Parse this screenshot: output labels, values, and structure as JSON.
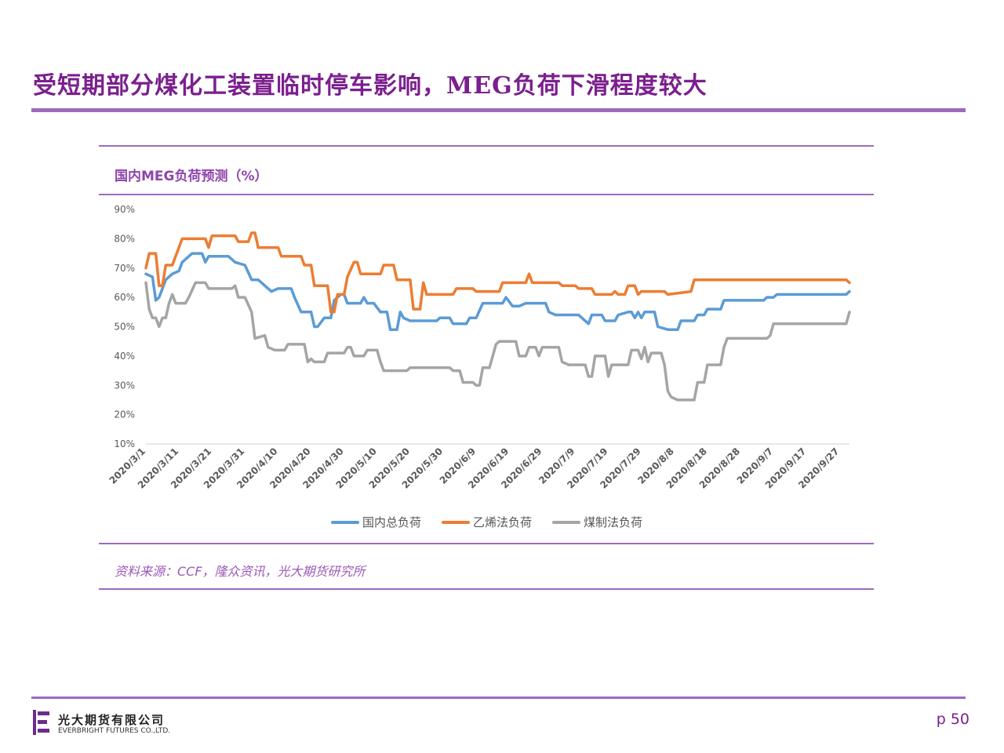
{
  "slide": {
    "title": "受短期部分煤化工装置临时停车影响，MEG负荷下滑程度较大",
    "page_label": "p 50",
    "source": "资料来源：CCF，隆众资讯，光大期货研究所"
  },
  "logo": {
    "name_cn": "光大期货有限公司",
    "name_en": "EVERBRIGHT FUTURES CO.,LTD."
  },
  "colors": {
    "accent": "#7b1f8e",
    "rule": "#9b6bc0",
    "series_total": "#5b9bd5",
    "series_ethylene": "#ed7d31",
    "series_coal": "#a5a5a5"
  },
  "chart_data": {
    "type": "line",
    "title": "国内MEG负荷预测（%）",
    "ylim": [
      10,
      90
    ],
    "y_ticks": [
      "10%",
      "20%",
      "30%",
      "40%",
      "50%",
      "60%",
      "70%",
      "80%",
      "90%"
    ],
    "x_ticks": [
      "2020/3/1",
      "2020/3/11",
      "2020/3/21",
      "2020/3/31",
      "2020/4/10",
      "2020/4/20",
      "2020/4/30",
      "2020/5/10",
      "2020/5/20",
      "2020/5/30",
      "2020/6/9",
      "2020/6/19",
      "2020/6/29",
      "2020/7/9",
      "2020/7/19",
      "2020/7/29",
      "2020/8/8",
      "2020/8/18",
      "2020/8/28",
      "2020/9/7",
      "2020/9/17",
      "2020/9/27"
    ],
    "x_start": "2020/3/1",
    "x_end": "2020/9/30",
    "legend_position": "bottom",
    "grid": false,
    "series": [
      {
        "name": "国内总负荷",
        "color": "#5b9bd5",
        "points": [
          [
            "2020/3/1",
            68
          ],
          [
            "2020/3/3",
            67
          ],
          [
            "2020/3/4",
            59
          ],
          [
            "2020/3/5",
            60
          ],
          [
            "2020/3/7",
            66
          ],
          [
            "2020/3/9",
            68
          ],
          [
            "2020/3/11",
            69
          ],
          [
            "2020/3/12",
            72
          ],
          [
            "2020/3/14",
            74
          ],
          [
            "2020/3/15",
            75
          ],
          [
            "2020/3/18",
            75
          ],
          [
            "2020/3/19",
            72
          ],
          [
            "2020/3/20",
            74
          ],
          [
            "2020/3/26",
            74
          ],
          [
            "2020/3/28",
            72
          ],
          [
            "2020/3/31",
            71
          ],
          [
            "2020/4/2",
            66
          ],
          [
            "2020/4/4",
            66
          ],
          [
            "2020/4/6",
            64
          ],
          [
            "2020/4/8",
            62
          ],
          [
            "2020/4/10",
            63
          ],
          [
            "2020/4/14",
            63
          ],
          [
            "2020/4/15",
            60
          ],
          [
            "2020/4/17",
            55
          ],
          [
            "2020/4/20",
            55
          ],
          [
            "2020/4/21",
            50
          ],
          [
            "2020/4/22",
            50
          ],
          [
            "2020/4/24",
            53
          ],
          [
            "2020/4/26",
            53
          ],
          [
            "2020/4/27",
            59
          ],
          [
            "2020/4/29",
            61
          ],
          [
            "2020/4/30",
            61
          ],
          [
            "2020/5/1",
            58
          ],
          [
            "2020/5/5",
            58
          ],
          [
            "2020/5/6",
            60
          ],
          [
            "2020/5/7",
            58
          ],
          [
            "2020/5/9",
            58
          ],
          [
            "2020/5/11",
            55
          ],
          [
            "2020/5/13",
            55
          ],
          [
            "2020/5/14",
            49
          ],
          [
            "2020/5/16",
            49
          ],
          [
            "2020/5/17",
            55
          ],
          [
            "2020/5/18",
            53
          ],
          [
            "2020/5/20",
            52
          ],
          [
            "2020/5/28",
            52
          ],
          [
            "2020/5/29",
            53
          ],
          [
            "2020/6/1",
            53
          ],
          [
            "2020/6/2",
            51
          ],
          [
            "2020/6/6",
            51
          ],
          [
            "2020/6/7",
            53
          ],
          [
            "2020/6/9",
            53
          ],
          [
            "2020/6/11",
            58
          ],
          [
            "2020/6/17",
            58
          ],
          [
            "2020/6/18",
            60
          ],
          [
            "2020/6/20",
            57
          ],
          [
            "2020/6/22",
            57
          ],
          [
            "2020/6/24",
            58
          ],
          [
            "2020/6/30",
            58
          ],
          [
            "2020/7/1",
            55
          ],
          [
            "2020/7/3",
            54
          ],
          [
            "2020/7/10",
            54
          ],
          [
            "2020/7/11",
            53
          ],
          [
            "2020/7/13",
            51
          ],
          [
            "2020/7/14",
            54
          ],
          [
            "2020/7/17",
            54
          ],
          [
            "2020/7/18",
            52
          ],
          [
            "2020/7/21",
            52
          ],
          [
            "2020/7/22",
            54
          ],
          [
            "2020/7/25",
            55
          ],
          [
            "2020/7/26",
            55
          ],
          [
            "2020/7/27",
            53
          ],
          [
            "2020/7/28",
            55
          ],
          [
            "2020/7/29",
            53
          ],
          [
            "2020/7/30",
            55
          ],
          [
            "2020/8/2",
            55
          ],
          [
            "2020/8/3",
            50
          ],
          [
            "2020/8/6",
            49
          ],
          [
            "2020/8/9",
            49
          ],
          [
            "2020/8/10",
            52
          ],
          [
            "2020/8/14",
            52
          ],
          [
            "2020/8/15",
            54
          ],
          [
            "2020/8/17",
            54
          ],
          [
            "2020/8/18",
            56
          ],
          [
            "2020/8/22",
            56
          ],
          [
            "2020/8/23",
            59
          ],
          [
            "2020/8/31",
            59
          ],
          [
            "2020/9/4",
            59
          ],
          [
            "2020/9/5",
            60
          ],
          [
            "2020/9/7",
            60
          ],
          [
            "2020/9/8",
            61
          ],
          [
            "2020/9/29",
            61
          ],
          [
            "2020/9/30",
            62
          ]
        ]
      },
      {
        "name": "乙烯法负荷",
        "color": "#ed7d31",
        "points": [
          [
            "2020/3/1",
            70
          ],
          [
            "2020/3/2",
            75
          ],
          [
            "2020/3/4",
            75
          ],
          [
            "2020/3/5",
            64
          ],
          [
            "2020/3/6",
            64
          ],
          [
            "2020/3/7",
            71
          ],
          [
            "2020/3/9",
            71
          ],
          [
            "2020/3/10",
            74
          ],
          [
            "2020/3/12",
            80
          ],
          [
            "2020/3/19",
            80
          ],
          [
            "2020/3/20",
            77
          ],
          [
            "2020/3/21",
            81
          ],
          [
            "2020/3/28",
            81
          ],
          [
            "2020/3/29",
            79
          ],
          [
            "2020/4/1",
            79
          ],
          [
            "2020/4/2",
            82
          ],
          [
            "2020/4/3",
            82
          ],
          [
            "2020/4/4",
            77
          ],
          [
            "2020/4/10",
            77
          ],
          [
            "2020/4/11",
            74
          ],
          [
            "2020/4/17",
            74
          ],
          [
            "2020/4/18",
            71
          ],
          [
            "2020/4/20",
            71
          ],
          [
            "2020/4/21",
            64
          ],
          [
            "2020/4/25",
            64
          ],
          [
            "2020/4/26",
            55
          ],
          [
            "2020/4/27",
            55
          ],
          [
            "2020/4/28",
            61
          ],
          [
            "2020/4/30",
            61
          ],
          [
            "2020/5/1",
            67
          ],
          [
            "2020/5/3",
            72
          ],
          [
            "2020/5/4",
            72
          ],
          [
            "2020/5/5",
            68
          ],
          [
            "2020/5/11",
            68
          ],
          [
            "2020/5/12",
            71
          ],
          [
            "2020/5/15",
            71
          ],
          [
            "2020/5/16",
            66
          ],
          [
            "2020/5/20",
            66
          ],
          [
            "2020/5/21",
            56
          ],
          [
            "2020/5/23",
            56
          ],
          [
            "2020/5/24",
            65
          ],
          [
            "2020/5/25",
            61
          ],
          [
            "2020/6/2",
            61
          ],
          [
            "2020/6/3",
            63
          ],
          [
            "2020/6/8",
            63
          ],
          [
            "2020/6/9",
            62
          ],
          [
            "2020/6/16",
            62
          ],
          [
            "2020/6/17",
            65
          ],
          [
            "2020/6/24",
            65
          ],
          [
            "2020/6/25",
            68
          ],
          [
            "2020/6/26",
            65
          ],
          [
            "2020/7/4",
            65
          ],
          [
            "2020/7/5",
            64
          ],
          [
            "2020/7/9",
            64
          ],
          [
            "2020/7/10",
            63
          ],
          [
            "2020/7/14",
            63
          ],
          [
            "2020/7/15",
            61
          ],
          [
            "2020/7/20",
            61
          ],
          [
            "2020/7/21",
            62
          ],
          [
            "2020/7/22",
            61
          ],
          [
            "2020/7/24",
            61
          ],
          [
            "2020/7/25",
            64
          ],
          [
            "2020/7/27",
            64
          ],
          [
            "2020/7/28",
            61
          ],
          [
            "2020/7/29",
            62
          ],
          [
            "2020/8/5",
            62
          ],
          [
            "2020/8/6",
            61
          ],
          [
            "2020/8/13",
            62
          ],
          [
            "2020/8/14",
            66
          ],
          [
            "2020/9/29",
            66
          ],
          [
            "2020/9/30",
            65
          ]
        ]
      },
      {
        "name": "煤制法负荷",
        "color": "#a5a5a5",
        "points": [
          [
            "2020/3/1",
            65
          ],
          [
            "2020/3/2",
            56
          ],
          [
            "2020/3/3",
            53
          ],
          [
            "2020/3/4",
            53
          ],
          [
            "2020/3/5",
            50
          ],
          [
            "2020/3/6",
            53
          ],
          [
            "2020/3/7",
            53
          ],
          [
            "2020/3/8",
            58
          ],
          [
            "2020/3/9",
            61
          ],
          [
            "2020/3/10",
            58
          ],
          [
            "2020/3/13",
            58
          ],
          [
            "2020/3/14",
            60
          ],
          [
            "2020/3/16",
            65
          ],
          [
            "2020/3/19",
            65
          ],
          [
            "2020/3/20",
            63
          ],
          [
            "2020/3/27",
            63
          ],
          [
            "2020/3/28",
            64
          ],
          [
            "2020/3/29",
            60
          ],
          [
            "2020/3/31",
            60
          ],
          [
            "2020/4/2",
            55
          ],
          [
            "2020/4/3",
            46
          ],
          [
            "2020/4/6",
            47
          ],
          [
            "2020/4/7",
            43
          ],
          [
            "2020/4/9",
            42
          ],
          [
            "2020/4/12",
            42
          ],
          [
            "2020/4/13",
            44
          ],
          [
            "2020/4/18",
            44
          ],
          [
            "2020/4/19",
            38
          ],
          [
            "2020/4/20",
            39
          ],
          [
            "2020/4/21",
            38
          ],
          [
            "2020/4/24",
            38
          ],
          [
            "2020/4/25",
            41
          ],
          [
            "2020/4/30",
            41
          ],
          [
            "2020/5/1",
            43
          ],
          [
            "2020/5/2",
            43
          ],
          [
            "2020/5/3",
            40
          ],
          [
            "2020/5/6",
            40
          ],
          [
            "2020/5/7",
            42
          ],
          [
            "2020/5/10",
            42
          ],
          [
            "2020/5/11",
            38
          ],
          [
            "2020/5/12",
            35
          ],
          [
            "2020/5/19",
            35
          ],
          [
            "2020/5/20",
            36
          ],
          [
            "2020/6/1",
            36
          ],
          [
            "2020/6/2",
            35
          ],
          [
            "2020/6/4",
            35
          ],
          [
            "2020/6/5",
            31
          ],
          [
            "2020/6/8",
            31
          ],
          [
            "2020/6/9",
            30
          ],
          [
            "2020/6/10",
            30
          ],
          [
            "2020/6/11",
            36
          ],
          [
            "2020/6/13",
            36
          ],
          [
            "2020/6/15",
            44
          ],
          [
            "2020/6/16",
            45
          ],
          [
            "2020/6/21",
            45
          ],
          [
            "2020/6/22",
            40
          ],
          [
            "2020/6/24",
            40
          ],
          [
            "2020/6/25",
            43
          ],
          [
            "2020/6/27",
            43
          ],
          [
            "2020/6/28",
            40
          ],
          [
            "2020/6/29",
            43
          ],
          [
            "2020/7/4",
            43
          ],
          [
            "2020/7/5",
            38
          ],
          [
            "2020/7/7",
            37
          ],
          [
            "2020/7/12",
            37
          ],
          [
            "2020/7/13",
            33
          ],
          [
            "2020/7/14",
            33
          ],
          [
            "2020/7/15",
            40
          ],
          [
            "2020/7/18",
            40
          ],
          [
            "2020/7/19",
            33
          ],
          [
            "2020/7/20",
            37
          ],
          [
            "2020/7/25",
            37
          ],
          [
            "2020/7/26",
            42
          ],
          [
            "2020/7/28",
            42
          ],
          [
            "2020/7/29",
            39
          ],
          [
            "2020/7/30",
            43
          ],
          [
            "2020/7/31",
            38
          ],
          [
            "2020/8/1",
            41
          ],
          [
            "2020/8/4",
            41
          ],
          [
            "2020/8/5",
            37
          ],
          [
            "2020/8/6",
            28
          ],
          [
            "2020/8/7",
            26
          ],
          [
            "2020/8/9",
            25
          ],
          [
            "2020/8/14",
            25
          ],
          [
            "2020/8/15",
            31
          ],
          [
            "2020/8/17",
            31
          ],
          [
            "2020/8/18",
            37
          ],
          [
            "2020/8/22",
            37
          ],
          [
            "2020/8/23",
            43
          ],
          [
            "2020/8/24",
            46
          ],
          [
            "2020/9/2",
            46
          ],
          [
            "2020/9/5",
            46
          ],
          [
            "2020/9/6",
            47
          ],
          [
            "2020/9/7",
            51
          ],
          [
            "2020/9/29",
            51
          ],
          [
            "2020/9/30",
            55
          ]
        ]
      }
    ]
  }
}
